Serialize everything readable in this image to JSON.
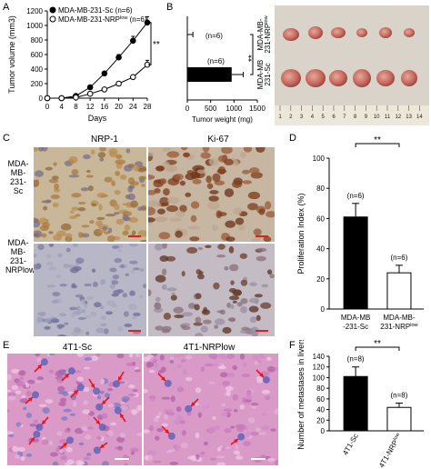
{
  "panels": {
    "A": "A",
    "B": "B",
    "C": "C",
    "D": "D",
    "E": "E",
    "F": "F"
  },
  "panelA": {
    "ylabel": "Tumor volume (mm3)",
    "xlabel": "Days",
    "legend": [
      "MDA-MB-231-Sc (n=6)",
      "MDA-MB-231-NRPlow (n=6)"
    ],
    "sig": "**",
    "yticks": [
      "0",
      "200",
      "400",
      "600",
      "800",
      "1000",
      "1200"
    ],
    "xticks": [
      "0",
      "4",
      "8",
      "12",
      "16",
      "20",
      "24",
      "28"
    ]
  },
  "panelB": {
    "xlabel": "Tumor weight (mg)",
    "xticks": [
      "0",
      "500",
      "1000",
      "1500"
    ],
    "ylabels": [
      "MDA-MB-231-NRPlow",
      "MDA-MB-231-Sc"
    ],
    "n_labels": [
      "(n=6)",
      "(n=6)"
    ],
    "sig": "**",
    "ruler_numbers": [
      "1",
      "2",
      "3",
      "4",
      "5",
      "6",
      "7",
      "8",
      "9",
      "10",
      "11",
      "12",
      "13",
      "14"
    ]
  },
  "panelC": {
    "col_titles": [
      "NRP-1",
      "Ki-67"
    ],
    "row_labels": [
      "MDA-MB-231-Sc",
      "MDA-MB-231-NRPlow"
    ]
  },
  "panelD": {
    "ylabel": "Proliferation Index (%)",
    "yticks": [
      "0",
      "20",
      "40",
      "60",
      "80",
      "100"
    ],
    "categories": [
      "MDA-MB-231-Sc",
      "MDA-MB-231-NRPlow"
    ],
    "n_labels": [
      "(n=6)",
      "(n=6)"
    ],
    "sig": "**"
  },
  "panelE": {
    "titles": [
      "4T1-Sc",
      "4T1-NRPlow"
    ]
  },
  "panelF": {
    "ylabel": "Number of metastases in livers",
    "yticks": [
      "0",
      "20",
      "40",
      "60",
      "80",
      "100",
      "120",
      "140"
    ],
    "categories": [
      "4T1-Sc",
      "4T1-NRPlow"
    ],
    "n_labels": [
      "(n=8)",
      "(n=8)"
    ],
    "sig": "**"
  },
  "chart_data": [
    {
      "type": "line",
      "id": "A",
      "x": [
        0,
        4,
        8,
        12,
        16,
        20,
        24,
        28
      ],
      "series": [
        {
          "name": "MDA-MB-231-Sc (n=6)",
          "values": [
            0,
            0,
            30,
            150,
            340,
            560,
            790,
            1040
          ],
          "err": [
            0,
            0,
            10,
            20,
            30,
            40,
            60,
            80
          ]
        },
        {
          "name": "MDA-MB-231-NRPlow (n=6)",
          "values": [
            0,
            0,
            10,
            60,
            120,
            200,
            290,
            460
          ],
          "err": [
            0,
            0,
            5,
            10,
            15,
            20,
            30,
            60
          ]
        }
      ],
      "xlabel": "Days",
      "ylabel": "Tumor volume (mm3)",
      "xlim": [
        0,
        28
      ],
      "ylim": [
        0,
        1200
      ]
    },
    {
      "type": "bar",
      "id": "B",
      "orientation": "horizontal",
      "categories": [
        "MDA-MB-231-NRPlow",
        "MDA-MB-231-Sc"
      ],
      "values": [
        0,
        950
      ],
      "err": [
        120,
        250
      ],
      "xlabel": "Tumor weight (mg)",
      "xlim": [
        0,
        1500
      ]
    },
    {
      "type": "bar",
      "id": "D",
      "categories": [
        "MDA-MB-231-Sc",
        "MDA-MB-231-NRPlow"
      ],
      "values": [
        61,
        24
      ],
      "err": [
        9,
        5
      ],
      "ylabel": "Proliferation Index (%)",
      "ylim": [
        0,
        100
      ]
    },
    {
      "type": "bar",
      "id": "F",
      "categories": [
        "4T1-Sc",
        "4T1-NRPlow"
      ],
      "values": [
        102,
        44
      ],
      "err": [
        18,
        8
      ],
      "ylabel": "Number of metastases in livers",
      "ylim": [
        0,
        140
      ]
    }
  ]
}
